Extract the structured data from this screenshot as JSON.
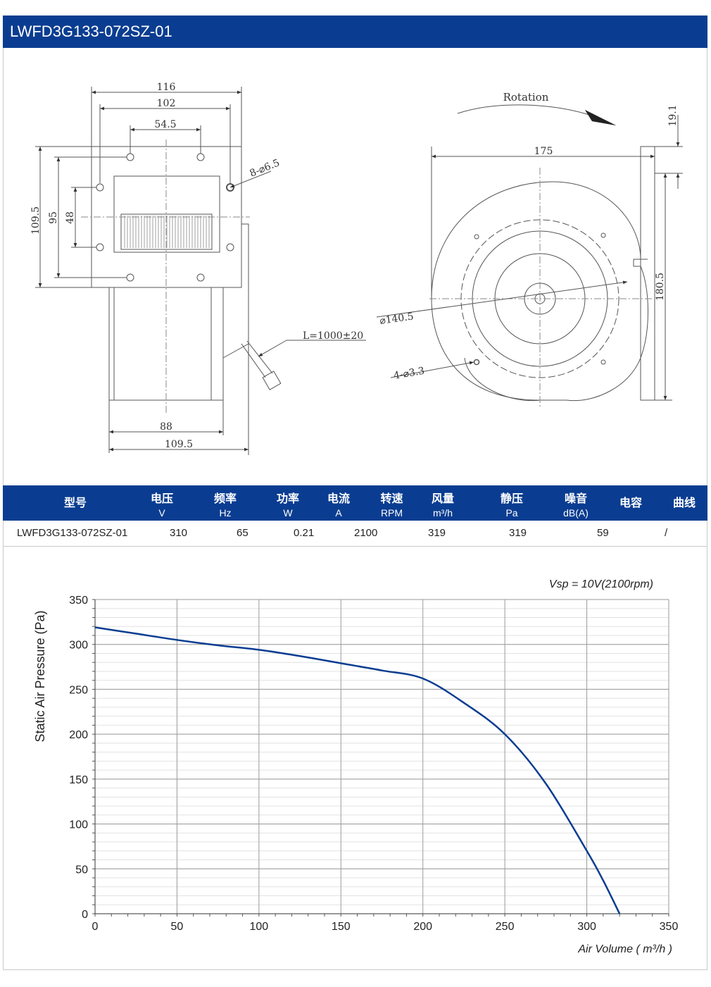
{
  "header": {
    "model_title": "LWFD3G133-072SZ-01"
  },
  "drawing": {
    "dim_116": "116",
    "dim_102": "102",
    "dim_54_5": "54.5",
    "dim_holes": "8-⌀6.5",
    "dim_109_5_left": "109.5",
    "dim_95": "95",
    "dim_48": "48",
    "dim_cable": "L=1000±20",
    "dim_88": "88",
    "dim_109_5_bottom": "109.5",
    "rotation": "Rotation",
    "dim_175": "175",
    "dim_19_1": "19.1",
    "dim_180_5": "180.5",
    "dim_140_5": "⌀140.5",
    "dim_mount": "4-⌀3.3"
  },
  "spec_table": {
    "headers": [
      {
        "zh": "型号",
        "unit": ""
      },
      {
        "zh": "电压",
        "unit": "V"
      },
      {
        "zh": "频率",
        "unit": "Hz"
      },
      {
        "zh": "功率",
        "unit": "W"
      },
      {
        "zh": "电流",
        "unit": "A"
      },
      {
        "zh": "转速",
        "unit": "RPM"
      },
      {
        "zh": "风量",
        "unit": "m³/h"
      },
      {
        "zh": "静压",
        "unit": "Pa"
      },
      {
        "zh": "噪音",
        "unit": "dB(A)"
      },
      {
        "zh": "电容",
        "unit": ""
      },
      {
        "zh": "曲线",
        "unit": ""
      }
    ],
    "row": {
      "model": "LWFD3G133-072SZ-01",
      "voltage": "310",
      "frequency": "65",
      "power": "0.21",
      "rpm": "2100",
      "airflow": "319",
      "pressure": "319",
      "noise": "59",
      "curve": "/"
    }
  },
  "chart_data": {
    "type": "line",
    "title": "",
    "annotation": "Vsp = 10V(2100rpm)",
    "xlabel": "Air Volume ( m³/h )",
    "ylabel": "Static Air Pressure  (Pa)",
    "xlim": [
      0,
      350
    ],
    "ylim": [
      0,
      350
    ],
    "x_ticks": [
      0,
      50,
      100,
      150,
      200,
      250,
      300,
      350
    ],
    "y_ticks": [
      0,
      50,
      100,
      150,
      200,
      250,
      300,
      350
    ],
    "grid": true,
    "color": "#0a3d91",
    "series": [
      {
        "x": [
          0,
          25,
          50,
          75,
          100,
          125,
          150,
          175,
          200,
          225,
          250,
          275,
          300,
          310,
          320
        ],
        "y": [
          319,
          312,
          305,
          299,
          294,
          287,
          279,
          271,
          262,
          235,
          200,
          145,
          70,
          37,
          0
        ]
      }
    ]
  }
}
